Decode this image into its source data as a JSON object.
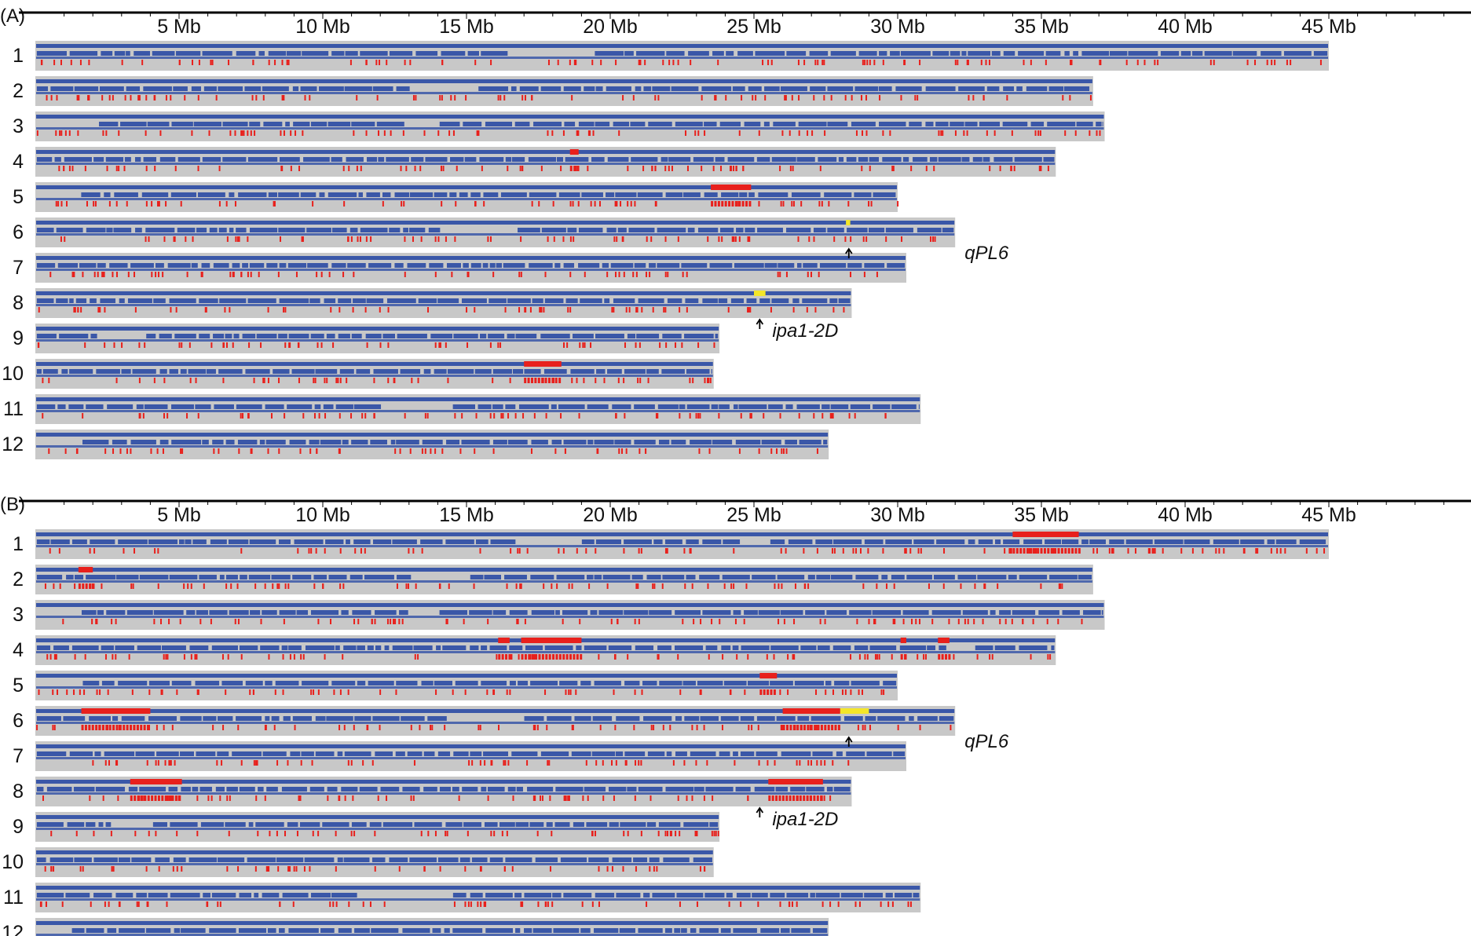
{
  "colors": {
    "background_bar": "#c8c8c8",
    "marker": "#3a57a8",
    "introgression": "#e8201c",
    "target_locus": "#f4e629",
    "axis": "#000000"
  },
  "axis": {
    "unit": "Mb",
    "max_mb": 49,
    "ticks": [
      {
        "value": 5,
        "label": "5 Mb"
      },
      {
        "value": 10,
        "label": "10 Mb"
      },
      {
        "value": 15,
        "label": "15 Mb"
      },
      {
        "value": 20,
        "label": "20 Mb"
      },
      {
        "value": 25,
        "label": "25 Mb"
      },
      {
        "value": 30,
        "label": "30 Mb"
      },
      {
        "value": 35,
        "label": "35 Mb"
      },
      {
        "value": 40,
        "label": "40 Mb"
      },
      {
        "value": 45,
        "label": "45 Mb"
      }
    ]
  },
  "chromosomes": [
    {
      "label": "1",
      "length_mb": 45.0,
      "marker_gaps": [
        [
          17.0,
          18.6
        ],
        [
          25.2,
          25.4
        ]
      ]
    },
    {
      "label": "2",
      "length_mb": 36.8,
      "marker_gaps": [
        [
          13.2,
          14.6
        ]
      ]
    },
    {
      "label": "3",
      "length_mb": 37.2,
      "marker_gaps": [
        [
          0.2,
          1.5
        ],
        [
          13.0,
          14.0
        ]
      ]
    },
    {
      "label": "4",
      "length_mb": 35.5,
      "marker_gaps": [
        [
          31.8,
          32.2
        ]
      ]
    },
    {
      "label": "5",
      "length_mb": 30.0,
      "marker_gaps": [
        [
          0.2,
          1.5
        ]
      ]
    },
    {
      "label": "6",
      "length_mb": 32.0,
      "marker_gaps": [
        [
          1.0,
          1.6
        ],
        [
          14.9,
          16.6
        ]
      ]
    },
    {
      "label": "7",
      "length_mb": 30.3,
      "marker_gaps": []
    },
    {
      "label": "8",
      "length_mb": 28.4,
      "marker_gaps": []
    },
    {
      "label": "9",
      "length_mb": 23.8,
      "marker_gaps": [
        [
          2.8,
          3.5
        ]
      ]
    },
    {
      "label": "10",
      "length_mb": 23.6,
      "marker_gaps": []
    },
    {
      "label": "11",
      "length_mb": 30.8,
      "marker_gaps": [
        [
          12.2,
          14.3
        ]
      ]
    },
    {
      "label": "12",
      "length_mb": 27.6,
      "marker_gaps": [
        [
          0.1,
          1.2
        ]
      ]
    }
  ],
  "panels": [
    {
      "label": "(A)",
      "segments": [
        {
          "chrom": "4",
          "start_mb": 18.6,
          "end_mb": 18.9,
          "color": "introgression"
        },
        {
          "chrom": "5",
          "start_mb": 23.5,
          "end_mb": 24.9,
          "color": "introgression"
        },
        {
          "chrom": "6",
          "start_mb": 28.2,
          "end_mb": 28.35,
          "color": "target_locus"
        },
        {
          "chrom": "8",
          "start_mb": 25.0,
          "end_mb": 25.4,
          "color": "target_locus"
        },
        {
          "chrom": "10",
          "start_mb": 17.0,
          "end_mb": 18.3,
          "color": "introgression"
        }
      ],
      "annotations": [
        {
          "chrom": "6",
          "position_mb": 28.3,
          "text": "qPL6",
          "label_side": "right-of-chromosome"
        },
        {
          "chrom": "8",
          "position_mb": 25.2,
          "text": "ipa1-2D",
          "label_side": "below-locus"
        }
      ]
    },
    {
      "label": "(B)",
      "segments": [
        {
          "chrom": "1",
          "start_mb": 34.0,
          "end_mb": 36.3,
          "color": "introgression"
        },
        {
          "chrom": "2",
          "start_mb": 1.5,
          "end_mb": 2.0,
          "color": "introgression"
        },
        {
          "chrom": "4",
          "start_mb": 16.1,
          "end_mb": 16.5,
          "color": "introgression"
        },
        {
          "chrom": "4",
          "start_mb": 16.9,
          "end_mb": 19.0,
          "color": "introgression"
        },
        {
          "chrom": "4",
          "start_mb": 30.1,
          "end_mb": 30.3,
          "color": "introgression"
        },
        {
          "chrom": "4",
          "start_mb": 31.4,
          "end_mb": 31.8,
          "color": "introgression"
        },
        {
          "chrom": "5",
          "start_mb": 25.2,
          "end_mb": 25.8,
          "color": "introgression"
        },
        {
          "chrom": "6",
          "start_mb": 1.6,
          "end_mb": 4.0,
          "color": "introgression"
        },
        {
          "chrom": "6",
          "start_mb": 26.0,
          "end_mb": 28.0,
          "color": "introgression"
        },
        {
          "chrom": "6",
          "start_mb": 28.0,
          "end_mb": 29.0,
          "color": "target_locus"
        },
        {
          "chrom": "8",
          "start_mb": 3.3,
          "end_mb": 5.1,
          "color": "introgression"
        },
        {
          "chrom": "8",
          "start_mb": 25.5,
          "end_mb": 27.4,
          "color": "introgression"
        }
      ],
      "annotations": [
        {
          "chrom": "6",
          "position_mb": 28.3,
          "text": "qPL6",
          "label_side": "right-of-chromosome"
        },
        {
          "chrom": "8",
          "position_mb": 25.2,
          "text": "ipa1-2D",
          "label_side": "below-locus"
        }
      ]
    }
  ]
}
